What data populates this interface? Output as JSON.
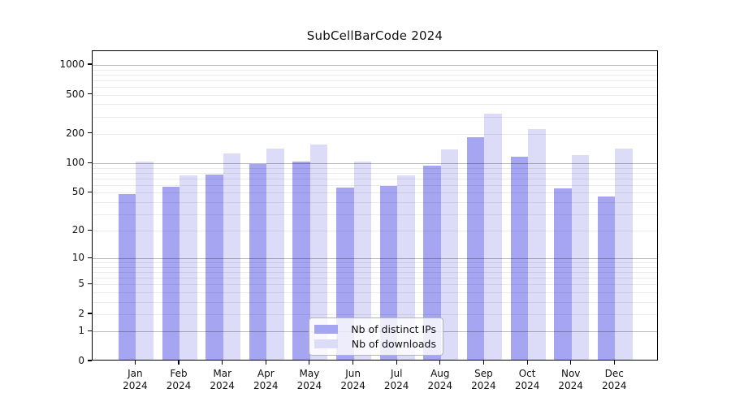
{
  "chart_data": {
    "type": "bar",
    "title": "SubCellBarCode 2024",
    "categories": [
      "Jan",
      "Feb",
      "Mar",
      "Apr",
      "May",
      "Jun",
      "Jul",
      "Aug",
      "Sep",
      "Oct",
      "Nov",
      "Dec"
    ],
    "x_year_label": "2024",
    "series": [
      {
        "name": "Nb of distinct IPs",
        "color": "#a5a5f1",
        "values": [
          47,
          55,
          74,
          94,
          100,
          54,
          56,
          91,
          178,
          112,
          53,
          44
        ]
      },
      {
        "name": "Nb of downloads",
        "color": "#dcdcf9",
        "values": [
          100,
          72,
          121,
          137,
          150,
          100,
          72,
          133,
          308,
          214,
          117,
          136
        ]
      }
    ],
    "yscale": "log10(1+v)",
    "y_ticks": [
      0,
      1,
      2,
      5,
      10,
      20,
      50,
      100,
      200,
      500,
      1000
    ],
    "y_minor_gridlines": [
      2,
      3,
      4,
      5,
      6,
      7,
      8,
      9,
      20,
      30,
      40,
      50,
      60,
      70,
      80,
      90,
      200,
      300,
      400,
      500,
      600,
      700,
      800,
      900
    ],
    "y_major_gridlines": [
      1,
      10,
      100,
      1000
    ],
    "ylim": [
      0,
      1380
    ],
    "grid": "on",
    "legend_position": "bottom-center-inside",
    "colors": {
      "grid_major": "rgba(0,0,0,0.27)",
      "grid_minor": "rgba(0,0,0,0.08)",
      "axis": "#000000",
      "text": "#111111",
      "background": "#ffffff"
    }
  }
}
